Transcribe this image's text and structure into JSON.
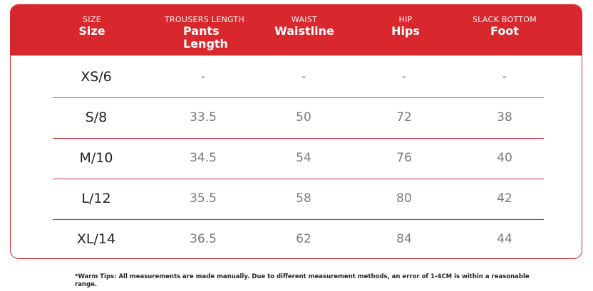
{
  "colors": {
    "accent": "#d8282e",
    "row_divider": "#c9343a",
    "value_text": "#7a7a7a"
  },
  "columns": [
    {
      "sub": "SIZE",
      "main": "Size"
    },
    {
      "sub": "TROUSERS LENGTH",
      "main": "Pants Length"
    },
    {
      "sub": "WAIST",
      "main": "Waistline"
    },
    {
      "sub": "HIP",
      "main": "Hips"
    },
    {
      "sub": "SLACK BOTTOM",
      "main": "Foot"
    }
  ],
  "rows": [
    {
      "size": "XS/6",
      "values": [
        "-",
        "-",
        "-",
        "-"
      ]
    },
    {
      "size": "S/8",
      "values": [
        "33.5",
        "50",
        "72",
        "38"
      ]
    },
    {
      "size": "M/10",
      "values": [
        "34.5",
        "54",
        "76",
        "40"
      ]
    },
    {
      "size": "L/12",
      "values": [
        "35.5",
        "58",
        "80",
        "42"
      ]
    },
    {
      "size": "XL/14",
      "values": [
        "36.5",
        "62",
        "84",
        "44"
      ]
    }
  ],
  "note": "*Warm Tips: All measurements are made manually. Due to different measurement methods, an error of 1-4CM is within a reasonable range."
}
